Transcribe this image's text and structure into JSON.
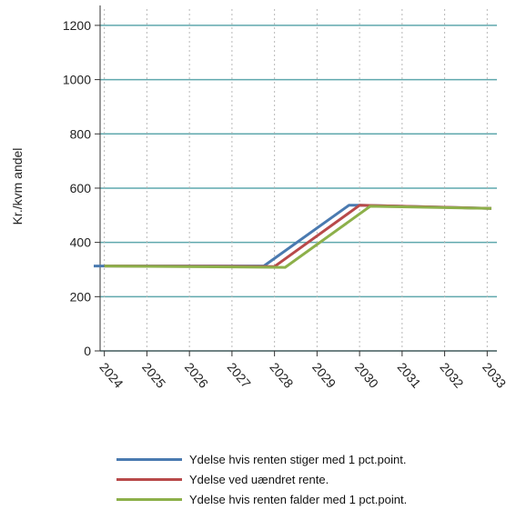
{
  "chart_data": {
    "type": "line",
    "title": "",
    "xlabel": "",
    "ylabel": "Kr./kvm andel",
    "x_ticks": [
      "2024",
      "2025",
      "2026",
      "2027",
      "2028",
      "2029",
      "2030",
      "2031",
      "2032",
      "2033"
    ],
    "y_ticks": [
      "0",
      "200",
      "400",
      "600",
      "800",
      "1000",
      "1200"
    ],
    "xlim": [
      2023.9,
      2033.1
    ],
    "ylim": [
      0,
      1260
    ],
    "grid": "horizontal solid, vertical dotted",
    "legend_position": "bottom",
    "series": [
      {
        "name": "Ydelse hvis renten stiger med 1 pct.point.",
        "color": "#4a7ab0",
        "points": [
          [
            2023.75,
            313
          ],
          [
            2024,
            313
          ],
          [
            2027.75,
            313
          ],
          [
            2029.75,
            537
          ],
          [
            2030,
            537
          ],
          [
            2033.1,
            525
          ]
        ]
      },
      {
        "name": "Ydelse ved uændret rente.",
        "color": "#b84a4a",
        "points": [
          [
            2024,
            313
          ],
          [
            2028,
            311
          ],
          [
            2030,
            537
          ],
          [
            2033.1,
            525
          ]
        ]
      },
      {
        "name": "Ydelse hvis renten falder med 1 pct.point.",
        "color": "#8db04a",
        "points": [
          [
            2024,
            313
          ],
          [
            2028.25,
            308
          ],
          [
            2030.25,
            533
          ],
          [
            2033.1,
            525
          ]
        ]
      }
    ]
  }
}
